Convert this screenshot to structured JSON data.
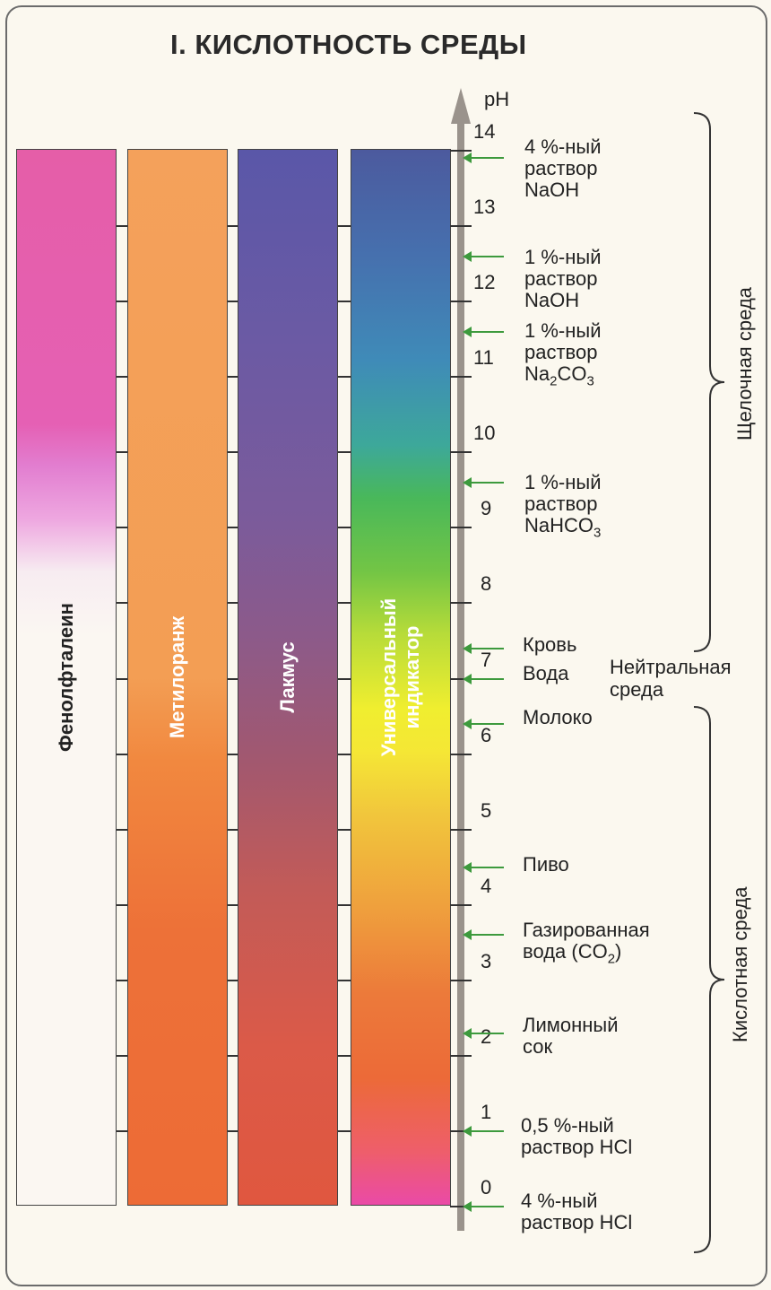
{
  "title": "I. КИСЛОТНОСТЬ СРЕДЫ",
  "axis_label": "pH",
  "indicators": [
    {
      "name": "Фенолфталеин"
    },
    {
      "name": "Метилоранж"
    },
    {
      "name": "Лакмус"
    },
    {
      "name": "Универсальный индикатор",
      "line1": "Универсальный",
      "line2": "индикатор"
    }
  ],
  "ph_ticks": [
    "0",
    "1",
    "2",
    "3",
    "4",
    "5",
    "6",
    "7",
    "8",
    "9",
    "10",
    "11",
    "12",
    "13",
    "14"
  ],
  "substances": [
    {
      "line1": "4 %-ный",
      "line2": "раствор",
      "line3": "NaOH",
      "ph": 13.9
    },
    {
      "line1": "1 %-ный",
      "line2": "раствор",
      "line3": "NaOH",
      "ph": 12.6
    },
    {
      "line1": "1 %-ный",
      "line2": "раствор",
      "line3a": "Na",
      "sub1": "2",
      "line3b": "CO",
      "sub2": "3",
      "ph": 11.6
    },
    {
      "line1": "1 %-ный",
      "line2": "раствор",
      "line3a": "NaHCO",
      "sub1": "3",
      "ph": 9.6
    },
    {
      "line1": "Кровь",
      "ph": 7.4
    },
    {
      "line1": "Вода",
      "ph": 7.0
    },
    {
      "line1": "Молоко",
      "ph": 6.4
    },
    {
      "line1": "Пиво",
      "ph": 4.5
    },
    {
      "line1a": "Газированная",
      "line2a": "вода (CO",
      "sub1": "2",
      "line2b": ")",
      "ph": 3.6
    },
    {
      "line1": "Лимонный",
      "line2": "сок",
      "ph": 2.3
    },
    {
      "line1": "0,5 %-ный",
      "line2": "раствор HCl",
      "ph": 1.0
    },
    {
      "line1": "4 %-ный",
      "line2": "раствор HCl",
      "ph": 0.0
    }
  ],
  "regions": {
    "alkaline": "Щелочная среда",
    "neutral_line1": "Нейтральная",
    "neutral_line2": "среда",
    "acidic": "Кислотная среда"
  },
  "colors": {
    "axis": "#9a938c",
    "marker": "#3d9a3d"
  }
}
